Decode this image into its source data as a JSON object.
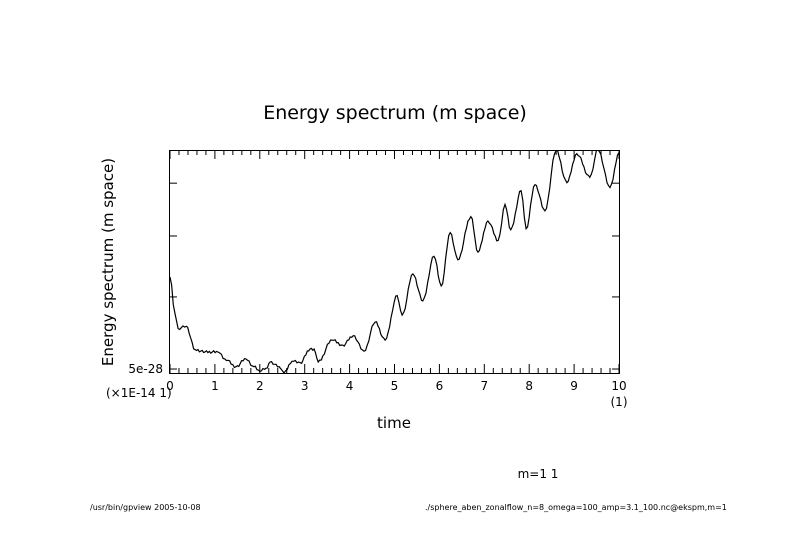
{
  "chart_data": {
    "type": "line",
    "title": "Energy spectrum (m space)",
    "xlabel": "time",
    "ylabel": "Energy spectrum (m space)",
    "x_multiplier_label": "(1)",
    "y_multiplier_label": "(×1E-14 1)",
    "xlim": [
      0,
      10
    ],
    "ylim": [
      4.95e-28,
      8.7e-28
    ],
    "yscale": "log",
    "x_ticks": [
      0,
      1,
      2,
      3,
      4,
      5,
      6,
      7,
      8,
      9,
      10
    ],
    "x_tick_labels": [
      "0",
      "1",
      "2",
      "3",
      "4",
      "5",
      "6",
      "7",
      "8",
      "9",
      "10"
    ],
    "y_major_ticks": [
      5e-28,
      6e-28,
      7e-28,
      8e-28
    ],
    "y_tick_labels": [
      "5e-28",
      "",
      "",
      ""
    ],
    "grid": false,
    "legend": null,
    "series": [
      {
        "name": "m=1 1",
        "x": [
          0.0,
          0.11,
          0.18,
          0.36,
          0.56,
          0.78,
          1.07,
          1.22,
          1.47,
          1.69,
          1.87,
          2.0,
          2.14,
          2.23,
          2.43,
          2.54,
          2.72,
          2.9,
          3.12,
          3.21,
          3.3,
          3.61,
          3.85,
          4.08,
          4.32,
          4.57,
          4.79,
          5.06,
          5.17,
          5.41,
          5.63,
          5.88,
          6.04,
          6.24,
          6.41,
          6.7,
          6.86,
          7.08,
          7.31,
          7.46,
          7.59,
          7.82,
          7.93,
          8.13,
          8.35,
          8.6,
          8.84,
          9.06,
          9.35,
          9.53,
          9.8,
          10.0
        ],
        "y": [
          6.31e-28,
          5.76e-28,
          5.54e-28,
          5.57e-28,
          5.25e-28,
          5.22e-28,
          5.22e-28,
          5.13e-28,
          5.03e-28,
          5.13e-28,
          5.03e-28,
          4.97e-28,
          5.01e-28,
          5.09e-28,
          5.03e-28,
          4.95e-28,
          5.1e-28,
          5.08e-28,
          5.26e-28,
          5.26e-28,
          5.09e-28,
          5.38e-28,
          5.31e-28,
          5.44e-28,
          5.23e-28,
          5.63e-28,
          5.38e-28,
          6.02e-28,
          5.73e-28,
          6.36e-28,
          5.94e-28,
          6.65e-28,
          6.17e-28,
          7.06e-28,
          6.59e-28,
          7.35e-28,
          6.72e-28,
          7.27e-28,
          6.92e-28,
          7.58e-28,
          7.11e-28,
          7.85e-28,
          7.13e-28,
          7.97e-28,
          7.46e-28,
          8.69e-28,
          8.01e-28,
          8.62e-28,
          8.12e-28,
          8.71e-28,
          7.91e-28,
          8.64e-28
        ]
      }
    ],
    "annotation": "m=1 1"
  },
  "footer": {
    "left": "/usr/bin/gpview  2005-10-08",
    "right": "./sphere_aben_zonalflow_n=8_omega=100_amp=3.1_100.nc@ekspm,m=1"
  }
}
